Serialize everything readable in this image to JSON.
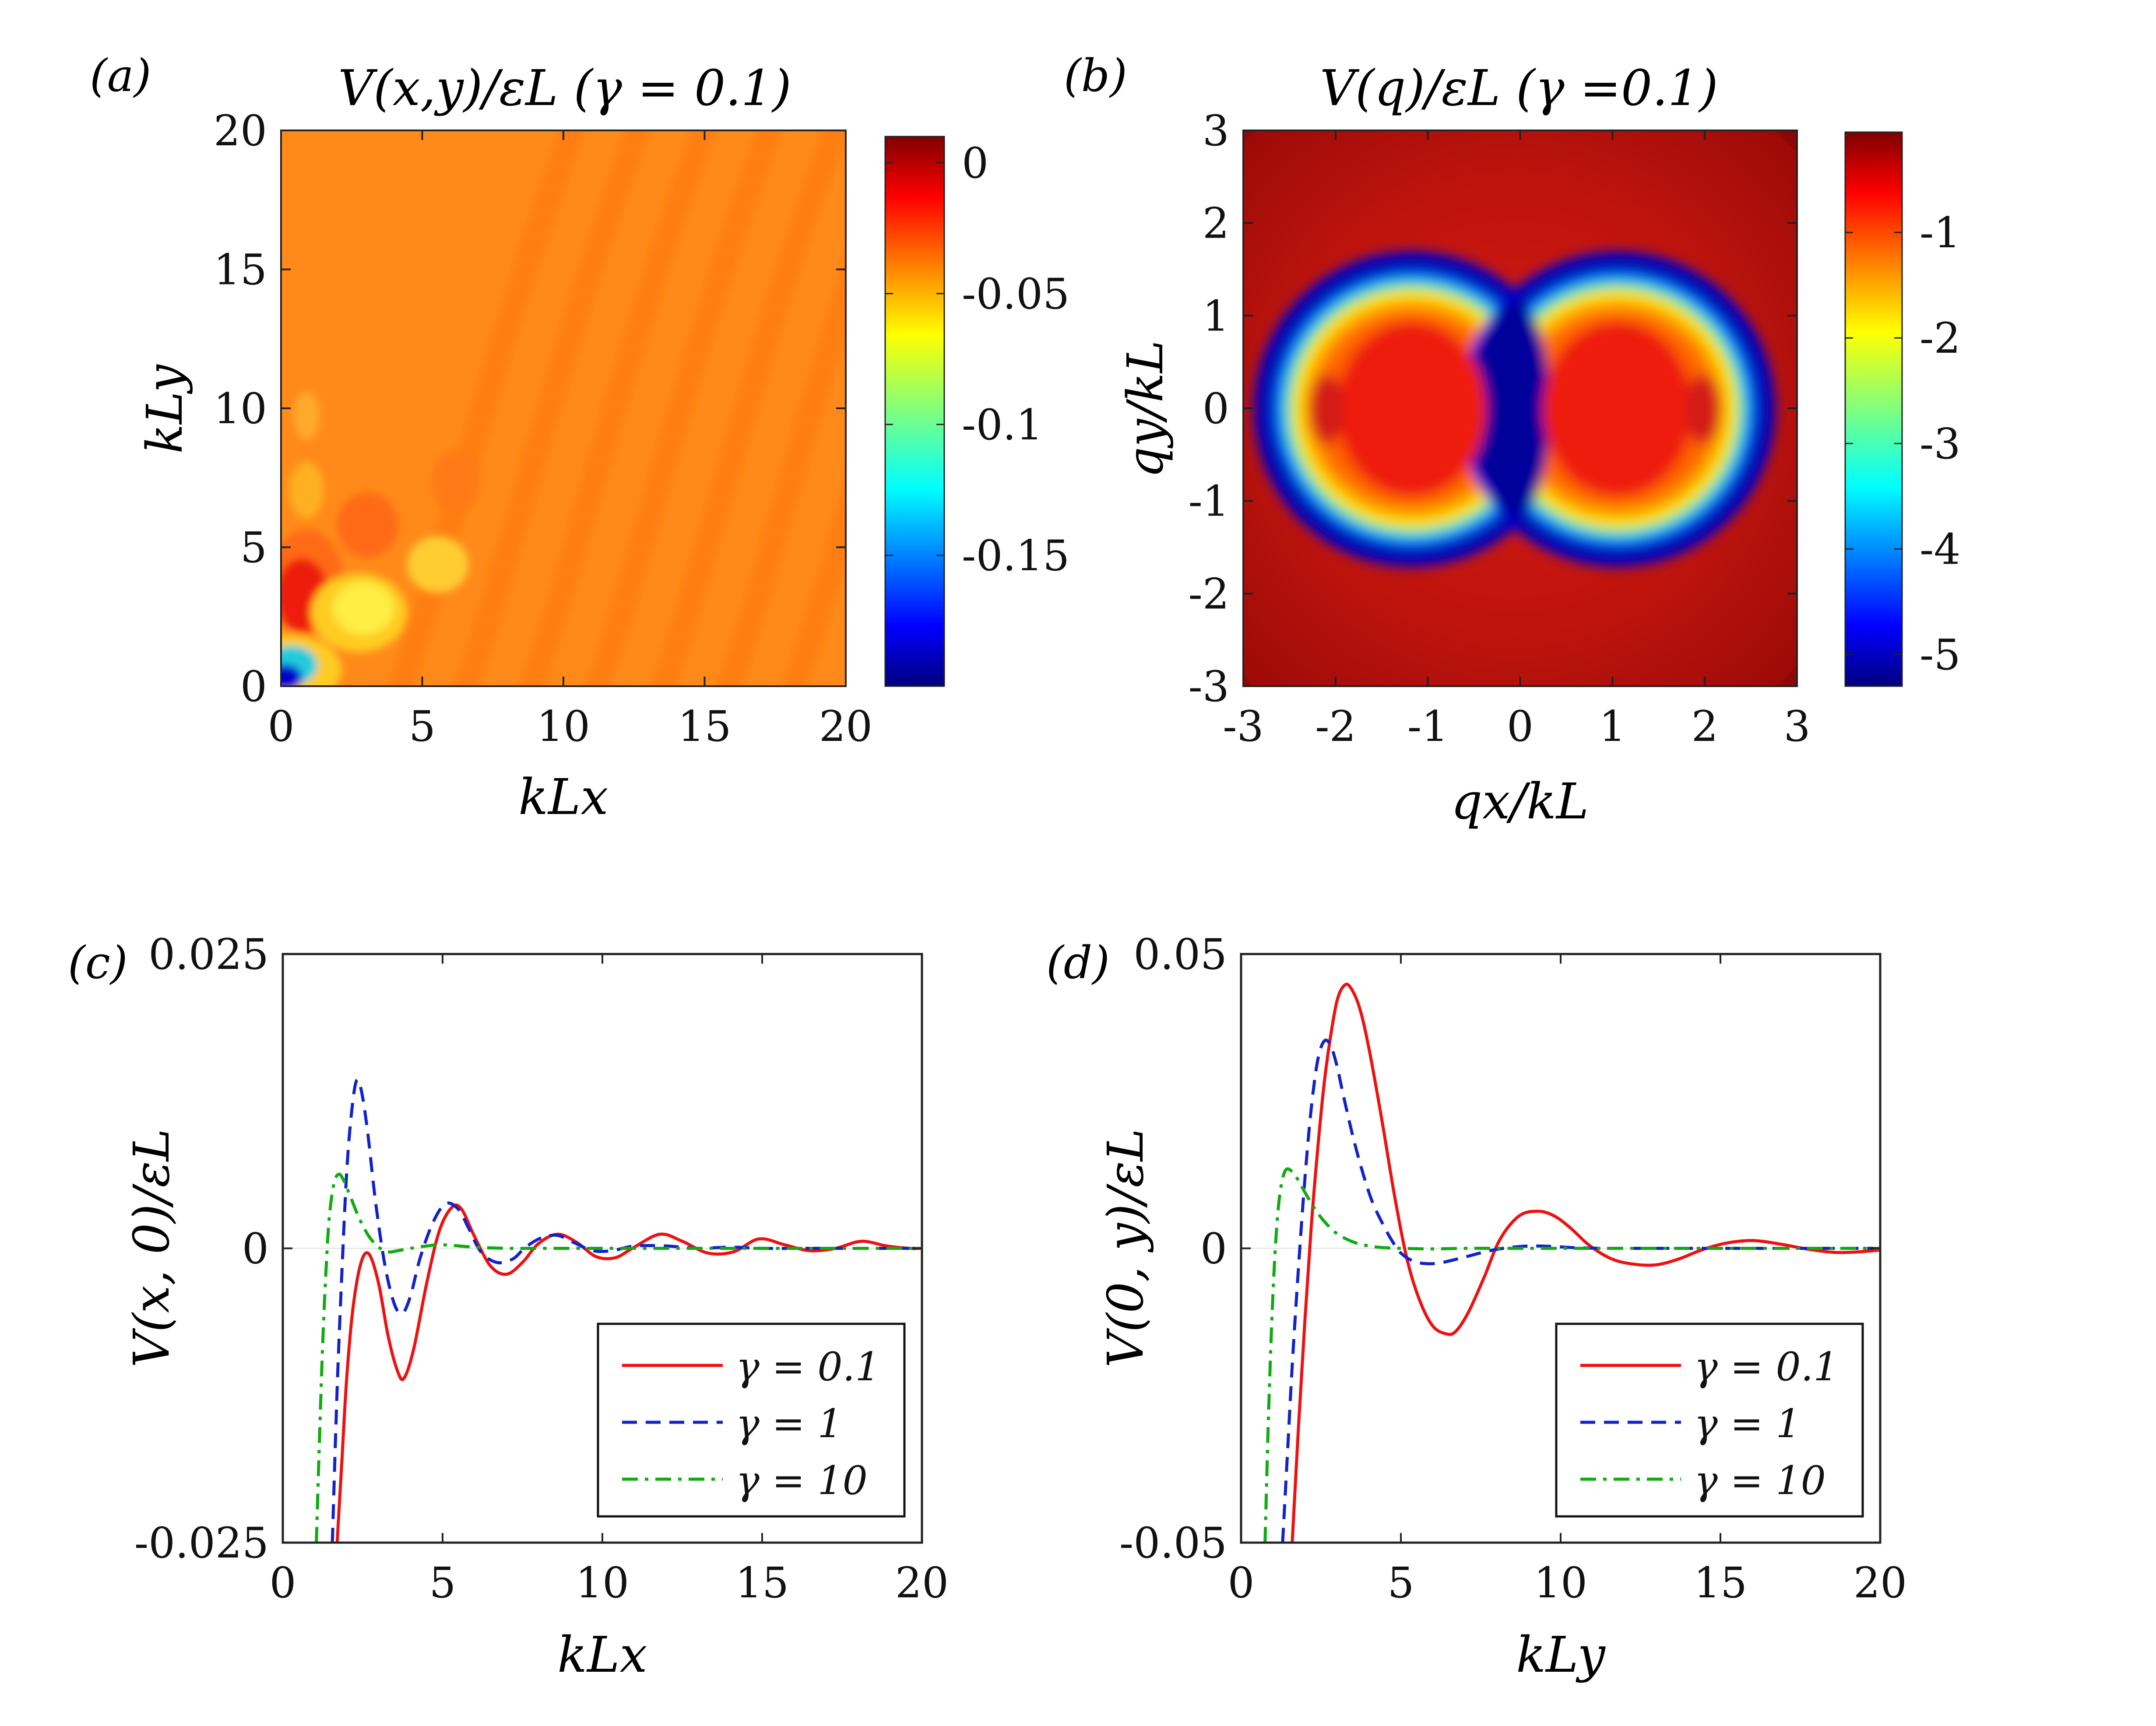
{
  "figure": {
    "panel_labels": [
      "(a)",
      "(b)",
      "(c)",
      "(d)"
    ]
  },
  "colors": {
    "red": "#ee1111",
    "blue": "#1122cc",
    "green": "#11aa11",
    "axis": "#222222"
  },
  "chart_data": [
    {
      "id": "a",
      "type": "heatmap",
      "title": "V(x,y)/εL  (γ = 0.1)",
      "xlabel": "kLx",
      "ylabel": "kLy",
      "xlim": [
        0,
        20
      ],
      "ylim": [
        0,
        20
      ],
      "xticks": [
        "0",
        "5",
        "10",
        "15",
        "20"
      ],
      "yticks": [
        "0",
        "5",
        "10",
        "15",
        "20"
      ],
      "colorbar": {
        "range": [
          -0.2,
          0.01
        ],
        "ticks": [
          "0",
          "-0.05",
          "-0.1",
          "-0.15"
        ],
        "tick_values": [
          0,
          -0.05,
          -0.1,
          -0.15
        ]
      }
    },
    {
      "id": "b",
      "type": "heatmap",
      "title": "V(q)/εL  (γ =0.1)",
      "xlabel": "qx/kL",
      "ylabel": "qy/kL",
      "xlim": [
        -3,
        3
      ],
      "ylim": [
        -3,
        3
      ],
      "xticks": [
        "-3",
        "-2",
        "-1",
        "0",
        "1",
        "2",
        "3"
      ],
      "yticks": [
        "-3",
        "-2",
        "-1",
        "0",
        "1",
        "2",
        "3"
      ],
      "colorbar": {
        "range": [
          -5.3,
          -0.05
        ],
        "ticks": [
          "-1",
          "-2",
          "-3",
          "-4",
          "-5"
        ],
        "tick_values": [
          -1,
          -2,
          -3,
          -4,
          -5
        ]
      }
    },
    {
      "id": "c",
      "type": "line",
      "xlabel": "kLx",
      "ylabel": "V(x, 0)/εL",
      "xlim": [
        0,
        20
      ],
      "ylim": [
        -0.025,
        0.025
      ],
      "xticks": [
        "0",
        "5",
        "10",
        "15",
        "20"
      ],
      "yticks": [
        "-0.025",
        "0",
        "0.025"
      ],
      "ytick_values": [
        -0.025,
        0,
        0.025
      ],
      "legend_position": "bottom-right",
      "series": [
        {
          "name": "γ = 0.1",
          "style": "solid",
          "color": "#ee1111",
          "x": [
            1.7,
            1.85,
            2.0,
            2.2,
            2.45,
            2.7,
            3.0,
            3.3,
            3.6,
            3.8,
            4.1,
            4.5,
            4.9,
            5.3,
            5.6,
            6.0,
            6.5,
            7.0,
            7.5,
            8.0,
            8.6,
            9.2,
            9.8,
            10.4,
            11.0,
            11.8,
            12.5,
            13.3,
            14.1,
            14.9,
            15.7,
            16.5,
            17.3,
            18.1,
            18.9,
            19.6,
            20.0
          ],
          "y": [
            -0.025,
            -0.018,
            -0.011,
            -0.005,
            -0.0012,
            -0.0005,
            -0.003,
            -0.0075,
            -0.0105,
            -0.011,
            -0.0085,
            -0.003,
            0.0015,
            0.0035,
            0.0033,
            0.001,
            -0.0015,
            -0.0022,
            -0.0012,
            0.0004,
            0.0012,
            0.0005,
            -0.0007,
            -0.0008,
            0.0001,
            0.0012,
            0.0006,
            -0.0004,
            -0.0003,
            0.0008,
            0.0003,
            -0.0002,
            0.0,
            0.0006,
            0.0002,
            0.0,
            0.0
          ]
        },
        {
          "name": "γ = 1",
          "style": "dashed",
          "color": "#1122cc",
          "x": [
            1.55,
            1.7,
            1.85,
            2.0,
            2.15,
            2.3,
            2.45,
            2.65,
            2.9,
            3.2,
            3.5,
            3.75,
            4.0,
            4.3,
            4.7,
            5.1,
            5.5,
            5.8,
            6.2,
            6.7,
            7.2,
            7.6,
            8.1,
            8.6,
            9.1,
            9.7,
            10.3,
            11.0,
            12.0,
            13.0,
            14.0,
            15.0,
            16.0,
            17.0,
            18.0,
            19.0,
            20.0
          ],
          "y": [
            -0.025,
            -0.012,
            -0.002,
            0.0065,
            0.0115,
            0.0142,
            0.0135,
            0.01,
            0.004,
            -0.0015,
            -0.0048,
            -0.0055,
            -0.004,
            -0.0008,
            0.0022,
            0.0038,
            0.0033,
            0.0018,
            -0.0003,
            -0.0012,
            -0.0009,
            0.0001,
            0.0009,
            0.0011,
            0.0005,
            -0.0002,
            -0.0002,
            0.0002,
            0.0002,
            0.0,
            0.0001,
            0.0,
            0.0,
            0.0,
            0.0,
            0.0,
            0.0
          ]
        },
        {
          "name": "γ = 10",
          "style": "dashdot",
          "color": "#11aa11",
          "x": [
            1.05,
            1.15,
            1.25,
            1.35,
            1.45,
            1.6,
            1.75,
            1.9,
            2.1,
            2.4,
            2.7,
            3.0,
            3.3,
            3.6,
            4.0,
            4.5,
            5.0,
            6.0,
            7.0,
            8.0,
            10.0,
            12.0,
            14.0,
            16.0,
            18.0,
            20.0
          ],
          "y": [
            -0.025,
            -0.016,
            -0.008,
            -0.002,
            0.0025,
            0.0055,
            0.0063,
            0.0058,
            0.0045,
            0.0025,
            0.001,
            0.0001,
            -0.0003,
            -0.0002,
            0.0,
            0.0002,
            0.0003,
            0.0001,
            0.0,
            0.0,
            0.0,
            0.0,
            0.0,
            0.0,
            0.0,
            0.0
          ]
        }
      ]
    },
    {
      "id": "d",
      "type": "line",
      "xlabel": "kLy",
      "ylabel": "V(0, y)/εL",
      "xlim": [
        0,
        20
      ],
      "ylim": [
        -0.05,
        0.05
      ],
      "xticks": [
        "0",
        "5",
        "10",
        "15",
        "20"
      ],
      "yticks": [
        "-0.05",
        "0",
        "0.05"
      ],
      "ytick_values": [
        -0.05,
        0,
        0.05
      ],
      "legend_position": "bottom-right",
      "series": [
        {
          "name": "γ = 0.1",
          "style": "solid",
          "color": "#ee1111",
          "x": [
            1.6,
            1.8,
            2.0,
            2.2,
            2.4,
            2.6,
            2.8,
            3.0,
            3.2,
            3.4,
            3.7,
            4.0,
            4.4,
            4.8,
            5.2,
            5.6,
            6.0,
            6.4,
            6.7,
            7.1,
            7.6,
            8.1,
            8.7,
            9.3,
            9.8,
            10.3,
            10.9,
            11.6,
            12.3,
            13.0,
            13.7,
            14.4,
            15.1,
            15.8,
            16.3,
            17.0,
            17.8,
            18.6,
            19.3,
            20.0
          ],
          "y": [
            -0.05,
            -0.03,
            -0.012,
            0.004,
            0.017,
            0.028,
            0.036,
            0.042,
            0.0445,
            0.0445,
            0.041,
            0.034,
            0.022,
            0.009,
            -0.002,
            -0.009,
            -0.0132,
            -0.0145,
            -0.0142,
            -0.011,
            -0.005,
            0.0015,
            0.0055,
            0.0063,
            0.0055,
            0.0035,
            0.0005,
            -0.0018,
            -0.0027,
            -0.0028,
            -0.0018,
            -0.0003,
            0.0008,
            0.0013,
            0.0012,
            0.0006,
            -0.0002,
            -0.0007,
            -0.0006,
            -0.0003
          ]
        },
        {
          "name": "γ = 1",
          "style": "dashed",
          "color": "#1122cc",
          "x": [
            1.3,
            1.45,
            1.6,
            1.8,
            2.0,
            2.2,
            2.4,
            2.6,
            2.8,
            3.0,
            3.2,
            3.5,
            3.8,
            4.1,
            4.4,
            4.7,
            5.0,
            5.4,
            5.8,
            6.2,
            6.7,
            7.2,
            7.7,
            8.2,
            8.7,
            9.2,
            9.8,
            10.5,
            11.5,
            12.5,
            14.0,
            16.0,
            18.0,
            20.0
          ],
          "y": [
            -0.05,
            -0.035,
            -0.02,
            -0.003,
            0.012,
            0.024,
            0.032,
            0.0352,
            0.0345,
            0.031,
            0.026,
            0.019,
            0.013,
            0.008,
            0.0045,
            0.0015,
            -0.0008,
            -0.0022,
            -0.0026,
            -0.0025,
            -0.0019,
            -0.0012,
            -0.0005,
            0.0,
            0.0003,
            0.0004,
            0.0003,
            0.0001,
            0.0,
            0.0,
            0.0,
            0.0,
            0.0,
            0.0
          ]
        },
        {
          "name": "γ = 10",
          "style": "dashdot",
          "color": "#11aa11",
          "x": [
            0.75,
            0.85,
            0.95,
            1.05,
            1.15,
            1.25,
            1.35,
            1.45,
            1.6,
            1.8,
            2.0,
            2.3,
            2.6,
            3.0,
            3.5,
            4.0,
            4.5,
            5.0,
            6.0,
            7.0,
            8.0,
            10.0,
            12.0,
            14.0,
            16.0,
            18.0,
            20.0
          ],
          "y": [
            -0.05,
            -0.03,
            -0.014,
            -0.002,
            0.006,
            0.0105,
            0.0128,
            0.0135,
            0.013,
            0.0115,
            0.0095,
            0.0068,
            0.0046,
            0.0025,
            0.0011,
            0.0004,
            0.0001,
            0.0,
            -0.0001,
            0.0,
            0.0,
            0.0,
            0.0,
            0.0,
            0.0,
            0.0,
            0.0
          ]
        }
      ]
    }
  ]
}
